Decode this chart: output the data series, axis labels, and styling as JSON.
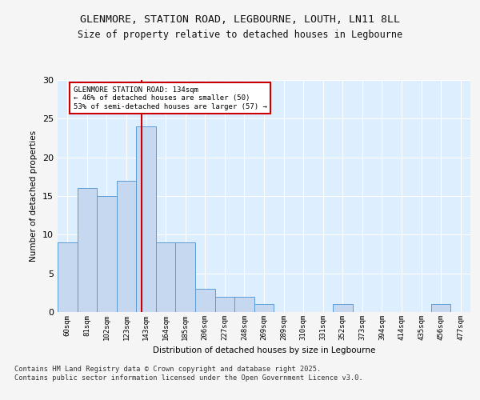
{
  "title_line1": "GLENMORE, STATION ROAD, LEGBOURNE, LOUTH, LN11 8LL",
  "title_line2": "Size of property relative to detached houses in Legbourne",
  "xlabel": "Distribution of detached houses by size in Legbourne",
  "ylabel": "Number of detached properties",
  "categories": [
    "60sqm",
    "81sqm",
    "102sqm",
    "123sqm",
    "143sqm",
    "164sqm",
    "185sqm",
    "206sqm",
    "227sqm",
    "248sqm",
    "269sqm",
    "289sqm",
    "310sqm",
    "331sqm",
    "352sqm",
    "373sqm",
    "394sqm",
    "414sqm",
    "435sqm",
    "456sqm",
    "477sqm"
  ],
  "values": [
    9,
    16,
    15,
    17,
    24,
    9,
    9,
    3,
    2,
    2,
    1,
    0,
    0,
    0,
    1,
    0,
    0,
    0,
    0,
    1,
    0
  ],
  "bar_color": "#c5d8f0",
  "bar_edge_color": "#5b9bd5",
  "background_color": "#ddeeff",
  "grid_color": "#ffffff",
  "red_line_x": 3.78,
  "annotation_text": "GLENMORE STATION ROAD: 134sqm\n← 46% of detached houses are smaller (50)\n53% of semi-detached houses are larger (57) →",
  "annotation_box_color": "#ffffff",
  "annotation_box_edge": "#cc0000",
  "ylim": [
    0,
    30
  ],
  "yticks": [
    0,
    5,
    10,
    15,
    20,
    25,
    30
  ],
  "footer": "Contains HM Land Registry data © Crown copyright and database right 2025.\nContains public sector information licensed under the Open Government Licence v3.0."
}
